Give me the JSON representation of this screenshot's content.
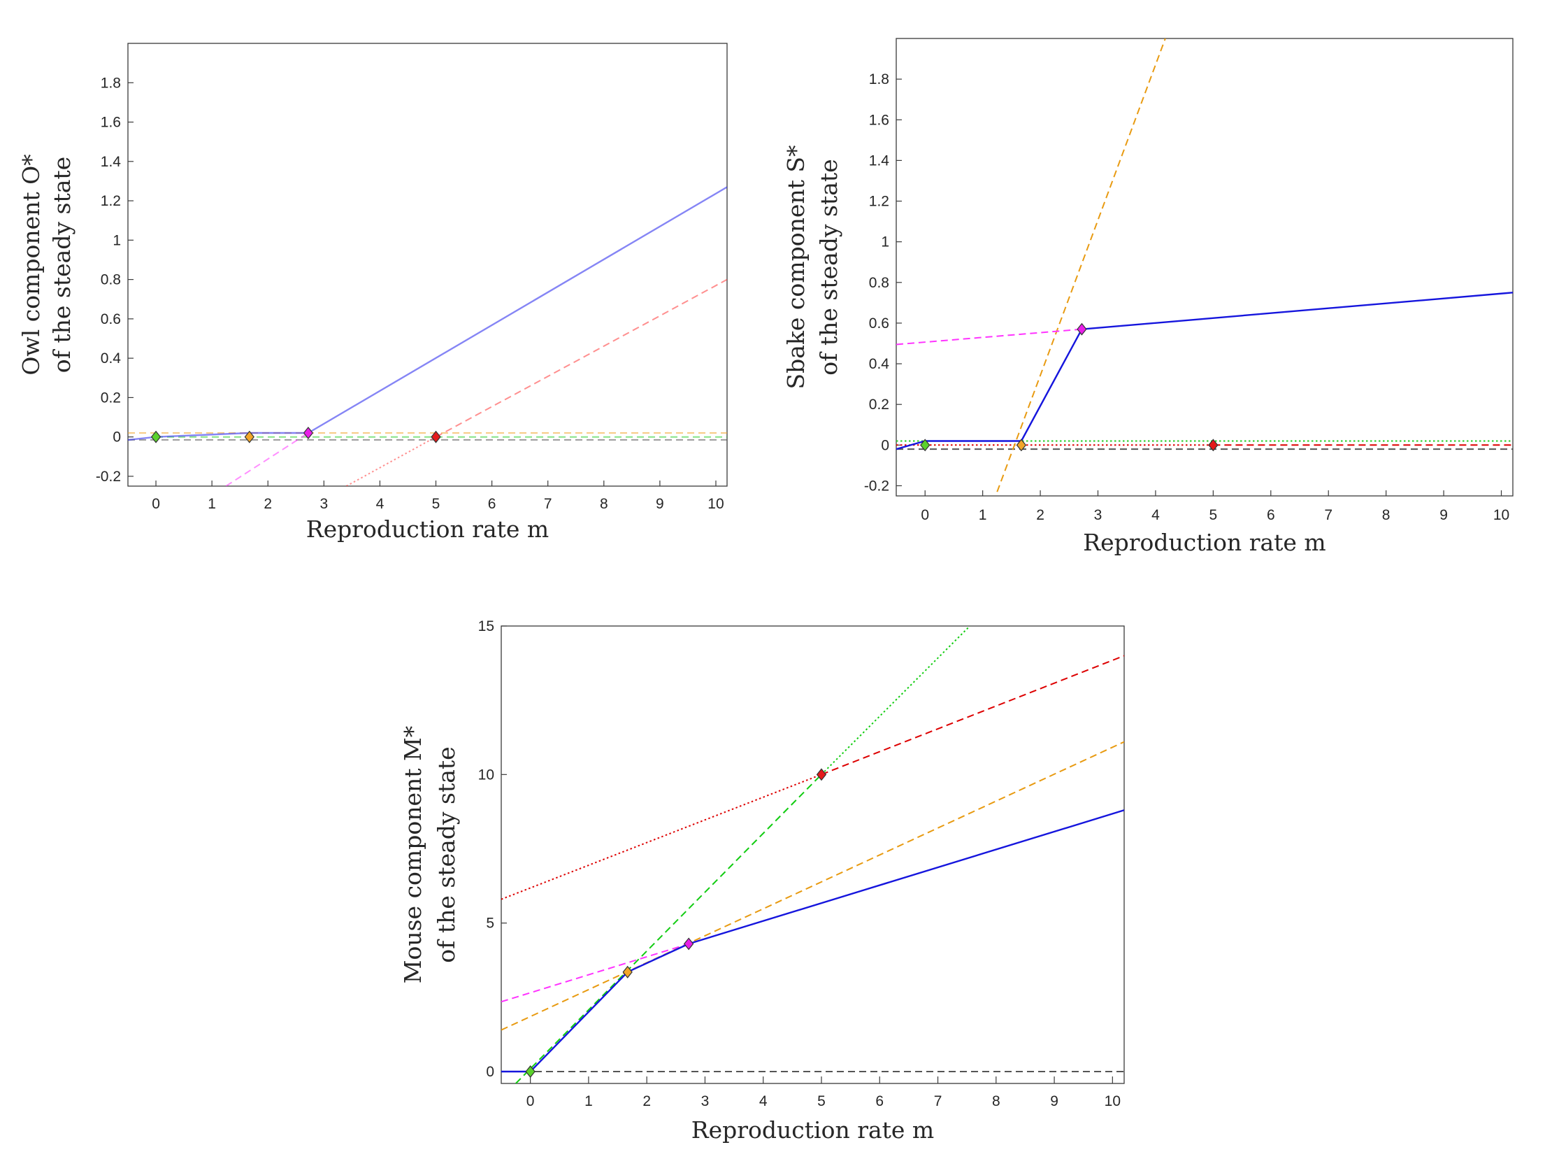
{
  "chart_data": [
    {
      "type": "line",
      "xlabel": "Reproduction rate m",
      "ylabel_lines": [
        "Owl component O*",
        "of the steady state"
      ],
      "xlim": [
        -0.5,
        10.2
      ],
      "ylim": [
        -0.25,
        2.0
      ],
      "xticks": [
        0,
        1,
        2,
        3,
        4,
        5,
        6,
        7,
        8,
        9,
        10
      ],
      "yticks": [
        -0.2,
        0,
        0.2,
        0.4,
        0.6,
        0.8,
        1,
        1.2,
        1.4,
        1.6,
        1.8
      ],
      "series": [
        {
          "name": "zero level",
          "color": "#555555",
          "dash": "dashed",
          "opacity": 0.6,
          "x": [
            -0.5,
            10.2
          ],
          "y": [
            -0.015,
            -0.015
          ]
        },
        {
          "name": "green branch",
          "color": "#22cc22",
          "dash": "dashed",
          "opacity": 0.55,
          "x": [
            0.0,
            10.2
          ],
          "y": [
            0.0,
            0.0
          ]
        },
        {
          "name": "orange branch",
          "color": "#f0a020",
          "dash": "dashed",
          "opacity": 0.55,
          "x": [
            -0.5,
            10.2
          ],
          "y": [
            0.02,
            0.02
          ]
        },
        {
          "name": "magenta branch",
          "color": "#ff33ff",
          "dash": "dashed",
          "opacity": 0.55,
          "x": [
            1.25,
            2.72
          ],
          "y": [
            -0.25,
            0.02
          ]
        },
        {
          "name": "red branch dotted",
          "color": "#ff3333",
          "dash": "dotted",
          "opacity": 0.55,
          "x": [
            3.4,
            5.0
          ],
          "y": [
            -0.25,
            0.0
          ]
        },
        {
          "name": "red branch dashed",
          "color": "#ff3333",
          "dash": "dashed",
          "opacity": 0.55,
          "x": [
            5.0,
            10.2
          ],
          "y": [
            0.0,
            0.8
          ]
        },
        {
          "name": "stable steady state",
          "color": "#3333ee",
          "dash": "solid",
          "opacity": 0.6,
          "x": [
            -0.5,
            0.0,
            1.67,
            2.72,
            10.2
          ],
          "y": [
            -0.015,
            0.0,
            0.02,
            0.02,
            1.27
          ]
        }
      ],
      "markers": [
        {
          "x": 0.0,
          "y": 0.0,
          "color": "#5bd12b"
        },
        {
          "x": 1.67,
          "y": 0.0,
          "color": "#f2a62a"
        },
        {
          "x": 2.72,
          "y": 0.02,
          "color": "#e81fe8"
        },
        {
          "x": 5.0,
          "y": 0.0,
          "color": "#e41a1a"
        }
      ]
    },
    {
      "type": "line",
      "xlabel": "Reproduction rate m",
      "ylabel_lines": [
        "Sbake component S*",
        "of the steady state"
      ],
      "xlim": [
        -0.5,
        10.2
      ],
      "ylim": [
        -0.25,
        2.0
      ],
      "xticks": [
        0,
        1,
        2,
        3,
        4,
        5,
        6,
        7,
        8,
        9,
        10
      ],
      "yticks": [
        -0.2,
        0,
        0.2,
        0.4,
        0.6,
        0.8,
        1,
        1.2,
        1.4,
        1.6,
        1.8
      ],
      "series": [
        {
          "name": "zero level",
          "color": "#555555",
          "dash": "dashed",
          "opacity": 1,
          "x": [
            -0.5,
            10.2
          ],
          "y": [
            -0.02,
            -0.02
          ]
        },
        {
          "name": "green branch",
          "color": "#22cc22",
          "dash": "dotted",
          "opacity": 1,
          "x": [
            -0.5,
            10.2
          ],
          "y": [
            0.02,
            0.02
          ]
        },
        {
          "name": "red branch dotted",
          "color": "#dd0000",
          "dash": "dotted",
          "opacity": 1,
          "x": [
            -0.5,
            5.0
          ],
          "y": [
            0.0,
            0.0
          ]
        },
        {
          "name": "red branch dashed",
          "color": "#dd0000",
          "dash": "dashed",
          "opacity": 1,
          "x": [
            5.0,
            10.2
          ],
          "y": [
            0.0,
            0.0
          ]
        },
        {
          "name": "orange branch",
          "color": "#e89a10",
          "dash": "dashed",
          "opacity": 1,
          "x": [
            1.25,
            4.17
          ],
          "y": [
            -0.23,
            2.0
          ]
        },
        {
          "name": "magenta branch",
          "color": "#ff33ff",
          "dash": "dashed",
          "opacity": 1,
          "x": [
            -0.5,
            2.72
          ],
          "y": [
            0.495,
            0.57
          ]
        },
        {
          "name": "stable steady state",
          "color": "#1515dd",
          "dash": "solid",
          "opacity": 1,
          "x": [
            -0.5,
            0.0,
            1.67,
            2.72,
            10.2
          ],
          "y": [
            -0.02,
            0.02,
            0.02,
            0.57,
            0.75
          ]
        }
      ],
      "markers": [
        {
          "x": 0.0,
          "y": 0.0,
          "color": "#5bd12b"
        },
        {
          "x": 1.67,
          "y": 0.0,
          "color": "#f2a62a"
        },
        {
          "x": 2.72,
          "y": 0.57,
          "color": "#e81fe8"
        },
        {
          "x": 5.0,
          "y": 0.0,
          "color": "#e41a1a"
        }
      ]
    },
    {
      "type": "line",
      "xlabel": "Reproduction rate m",
      "ylabel_lines": [
        "Mouse component M*",
        "of the steady state"
      ],
      "xlim": [
        -0.5,
        10.2
      ],
      "ylim": [
        -0.4,
        15.0
      ],
      "xticks": [
        0,
        1,
        2,
        3,
        4,
        5,
        6,
        7,
        8,
        9,
        10
      ],
      "yticks": [
        0,
        5,
        10,
        15
      ],
      "series": [
        {
          "name": "zero level",
          "color": "#555555",
          "dash": "dashed",
          "opacity": 1,
          "x": [
            -0.5,
            10.2
          ],
          "y": [
            0.0,
            0.0
          ]
        },
        {
          "name": "red branch dotted",
          "color": "#dd0000",
          "dash": "dotted",
          "opacity": 1,
          "x": [
            -0.5,
            5.0
          ],
          "y": [
            5.8,
            10.0
          ]
        },
        {
          "name": "red branch dashed",
          "color": "#dd0000",
          "dash": "dashed",
          "opacity": 1,
          "x": [
            5.0,
            10.2
          ],
          "y": [
            10.0,
            14.0
          ]
        },
        {
          "name": "green branch dashed",
          "color": "#11cc11",
          "dash": "dashed",
          "opacity": 1,
          "x": [
            -0.25,
            5.0
          ],
          "y": [
            -0.4,
            10.0
          ]
        },
        {
          "name": "green branch dotted",
          "color": "#11cc11",
          "dash": "dotted",
          "opacity": 1,
          "x": [
            5.0,
            7.55
          ],
          "y": [
            10.0,
            15.0
          ]
        },
        {
          "name": "orange branch",
          "color": "#e89a10",
          "dash": "dashed",
          "opacity": 1,
          "x": [
            -0.5,
            10.2
          ],
          "y": [
            1.4,
            11.1
          ]
        },
        {
          "name": "magenta branch",
          "color": "#ff33ff",
          "dash": "dashed",
          "opacity": 1,
          "x": [
            -0.5,
            2.72
          ],
          "y": [
            2.35,
            4.3
          ]
        },
        {
          "name": "stable steady state",
          "color": "#1515dd",
          "dash": "solid",
          "opacity": 1,
          "x": [
            -0.5,
            0.0,
            1.67,
            2.72,
            10.2
          ],
          "y": [
            0.0,
            0.0,
            3.35,
            4.3,
            8.8
          ]
        }
      ],
      "markers": [
        {
          "x": 0.0,
          "y": 0.0,
          "color": "#5bd12b"
        },
        {
          "x": 1.67,
          "y": 3.35,
          "color": "#f2a62a"
        },
        {
          "x": 2.72,
          "y": 4.3,
          "color": "#e81fe8"
        },
        {
          "x": 5.0,
          "y": 10.0,
          "color": "#e41a1a"
        }
      ]
    }
  ]
}
